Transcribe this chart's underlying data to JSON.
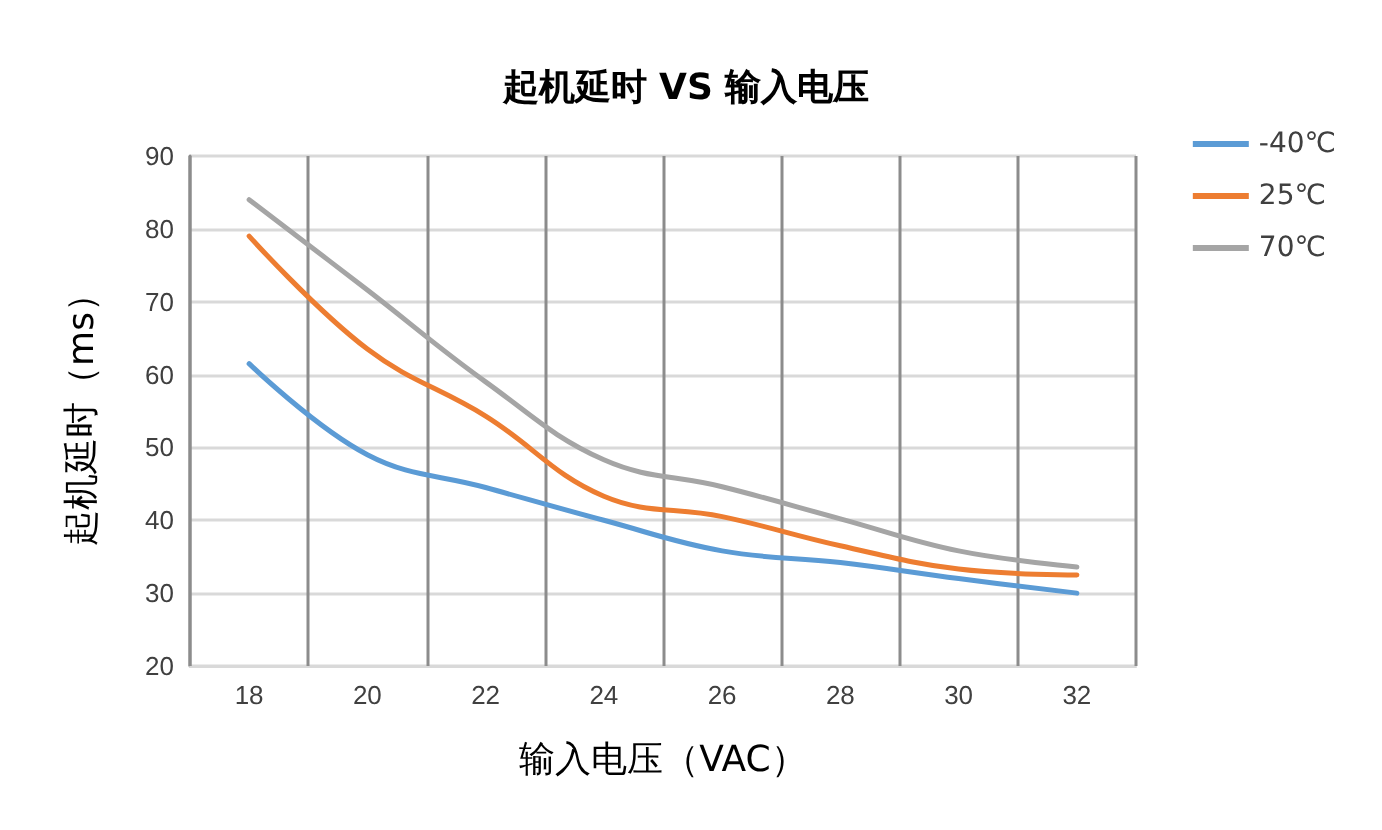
{
  "chart_data": {
    "type": "line",
    "title": "起机延时 VS 输入电压",
    "xlabel": "输入电压（VAC）",
    "ylabel": "起机延时（ms）",
    "categories": [
      "18",
      "20",
      "22",
      "24",
      "26",
      "28",
      "30",
      "32"
    ],
    "series": [
      {
        "name": "-40℃",
        "color": "#5b9bd5",
        "values": [
          61.5,
          49,
          44.5,
          40,
          35.8,
          34.2,
          32,
          30
        ]
      },
      {
        "name": "25℃",
        "color": "#ed7d31",
        "values": [
          79,
          63.5,
          54.3,
          43.3,
          40.5,
          36.5,
          33.3,
          32.5
        ]
      },
      {
        "name": "70℃",
        "color": "#a5a5a5",
        "values": [
          84,
          71.6,
          59,
          48.3,
          44.6,
          40.2,
          35.8,
          33.6
        ]
      }
    ],
    "ylim": [
      20,
      90
    ],
    "yticks": [
      20,
      30,
      40,
      50,
      60,
      70,
      80,
      90
    ],
    "grid": true,
    "legend": "top right",
    "marker": "none",
    "line_style": "solid"
  }
}
